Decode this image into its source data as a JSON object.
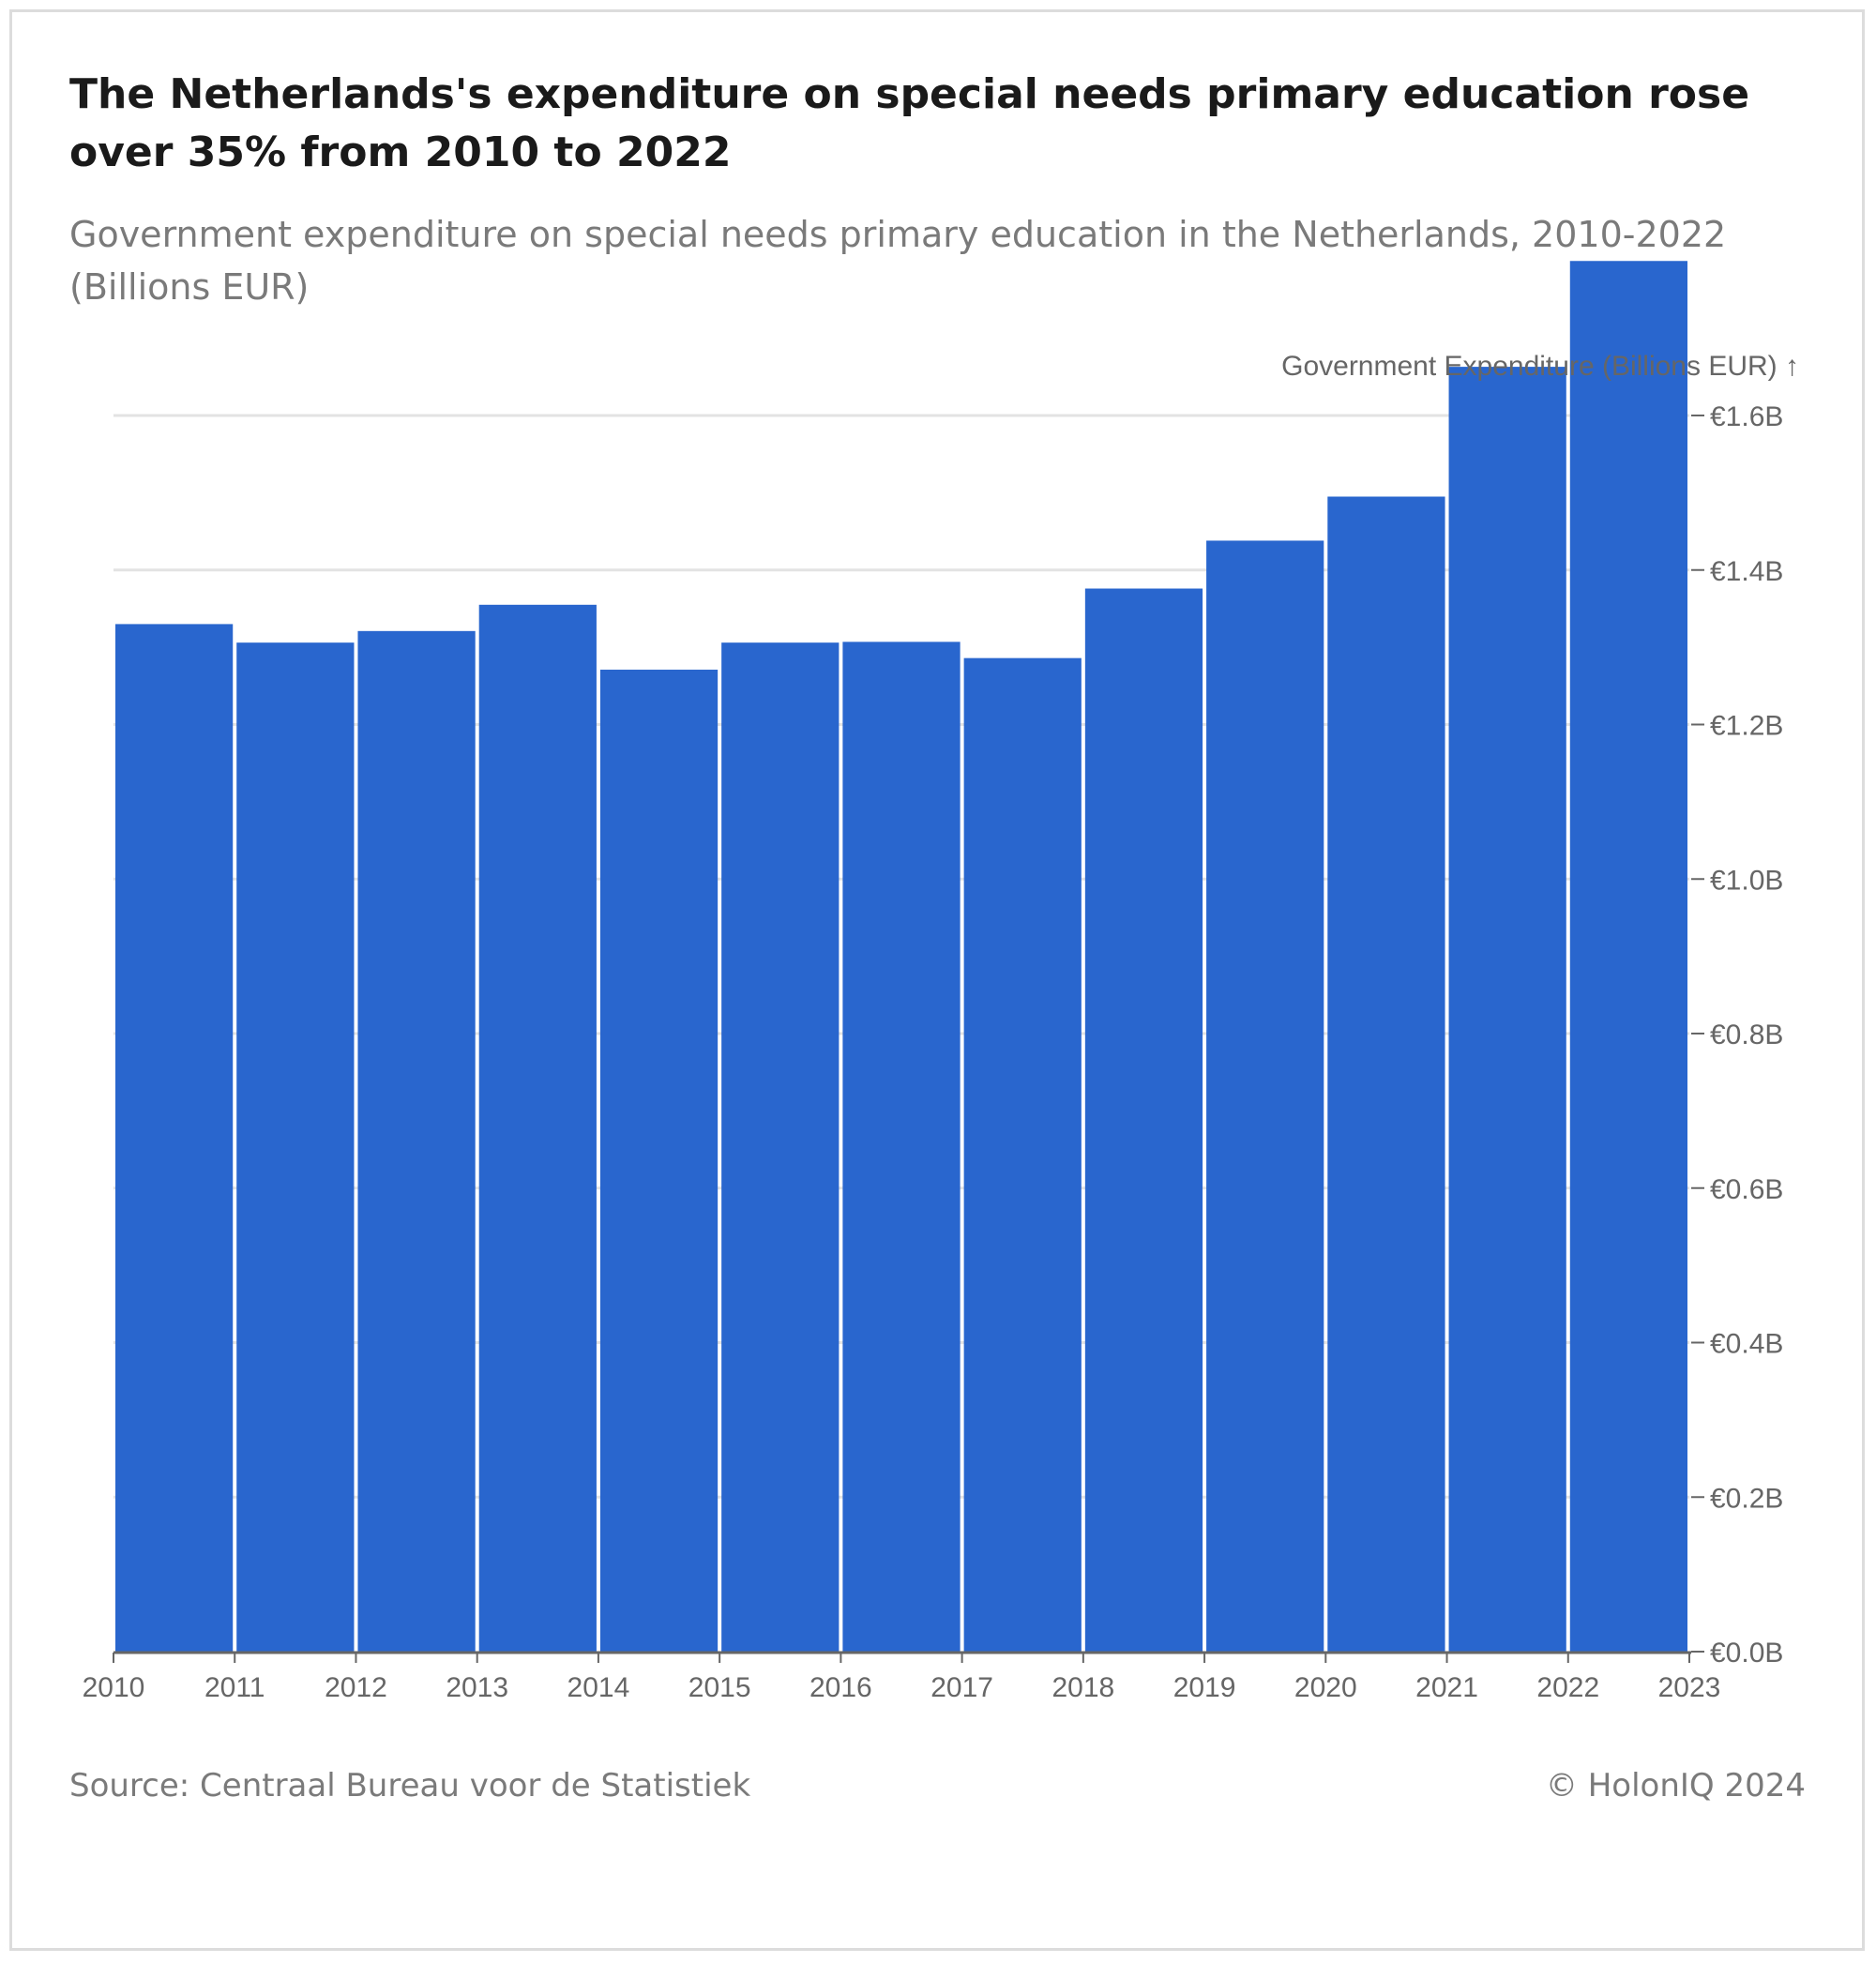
{
  "header": {
    "title": "The Netherlands's expenditure on special needs primary education rose over 35% from 2010 to 2022",
    "subtitle": "Government expenditure on special needs primary education in the Netherlands, 2010-2022 (Billions EUR)"
  },
  "footer": {
    "source": "Source: Centraal Bureau voor de Statistiek",
    "copyright": "© HolonIQ 2024"
  },
  "colors": {
    "bar": "#2966CE",
    "grid": "#e3e3e3",
    "axis": "#666666",
    "tick_text": "#666666"
  },
  "chart_data": {
    "type": "bar",
    "title": "The Netherlands's expenditure on special needs primary education rose over 35% from 2010 to 2022",
    "subtitle": "Government expenditure on special needs primary education in the Netherlands, 2010-2022 (Billions EUR)",
    "ylabel": "Government Expenditure (Billions EUR) ↑",
    "xlabel": "",
    "categories": [
      2010,
      2011,
      2012,
      2013,
      2014,
      2015,
      2016,
      2017,
      2018,
      2019,
      2020,
      2021,
      2022
    ],
    "values": [
      1.33,
      1.306,
      1.321,
      1.355,
      1.271,
      1.306,
      1.307,
      1.286,
      1.376,
      1.438,
      1.495,
      1.663,
      1.8
    ],
    "x_ticks": [
      "2010",
      "2011",
      "2012",
      "2013",
      "2014",
      "2015",
      "2016",
      "2017",
      "2018",
      "2019",
      "2020",
      "2021",
      "2022",
      "2023"
    ],
    "y_ticks": [
      {
        "value": 0.0,
        "label": "€0.0B"
      },
      {
        "value": 0.2,
        "label": "€0.2B"
      },
      {
        "value": 0.4,
        "label": "€0.4B"
      },
      {
        "value": 0.6,
        "label": "€0.6B"
      },
      {
        "value": 0.8,
        "label": "€0.8B"
      },
      {
        "value": 1.0,
        "label": "€1.0B"
      },
      {
        "value": 1.2,
        "label": "€1.2B"
      },
      {
        "value": 1.4,
        "label": "€1.4B"
      },
      {
        "value": 1.6,
        "label": "€1.6B"
      }
    ],
    "ylim": [
      0,
      1.8
    ],
    "xlim": [
      2010,
      2023
    ],
    "y_axis_position": "right",
    "grid": true,
    "legend": "none"
  }
}
